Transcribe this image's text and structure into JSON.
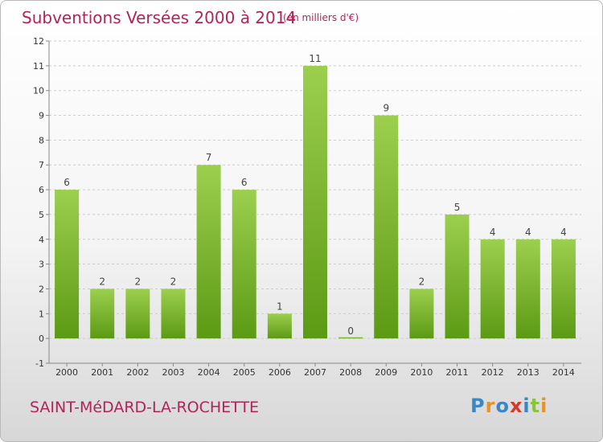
{
  "header": {
    "title": "Subventions Versées 2000 à 2014",
    "subtitle": "(en milliers d'€)"
  },
  "footer": {
    "commune": "SAINT-MéDARD-LA-ROCHETTE",
    "logo": "Proxiti",
    "logo_colors": [
      "#3a87c8",
      "#e8902a",
      "#3a87c8",
      "#d83a2a",
      "#3a87c8",
      "#8ac43a",
      "#e8902a"
    ]
  },
  "colors": {
    "bar_top": "#9ccf4e",
    "bar_bottom": "#5c9a14",
    "axis": "#888888",
    "grid": "#cccccc"
  },
  "chart_data": {
    "type": "bar",
    "categories": [
      "2000",
      "2001",
      "2002",
      "2003",
      "2004",
      "2005",
      "2006",
      "2007",
      "2008",
      "2009",
      "2010",
      "2011",
      "2012",
      "2013",
      "2014"
    ],
    "values": [
      6,
      2,
      2,
      2,
      7,
      6,
      1,
      11,
      0,
      9,
      2,
      5,
      4,
      4,
      4
    ],
    "ylim": [
      -1,
      12
    ],
    "yticks": [
      -1,
      0,
      1,
      2,
      3,
      4,
      5,
      6,
      7,
      8,
      9,
      10,
      11,
      12
    ],
    "grid": "horizontal-dashed",
    "legend": "none"
  }
}
